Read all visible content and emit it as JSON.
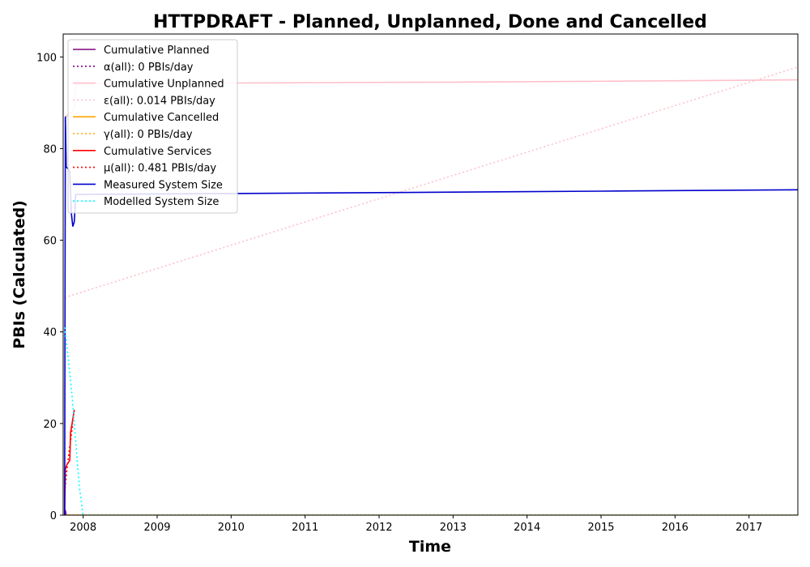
{
  "chart_data": {
    "type": "line",
    "title": "HTTPDRAFT - Planned, Unplanned, Done  and Cancelled",
    "xlabel": "Time",
    "ylabel": "PBIs (Calculated)",
    "xlim": [
      2007.73,
      2017.66
    ],
    "ylim": [
      0,
      105
    ],
    "x_ticks": [
      2008,
      2009,
      2010,
      2011,
      2012,
      2013,
      2014,
      2015,
      2016,
      2017
    ],
    "y_ticks": [
      0,
      20,
      40,
      60,
      80,
      100
    ],
    "grid": false,
    "legend_position": "top-left",
    "series": [
      {
        "name": "Cumulative Planned",
        "color": "#800080",
        "dash": "solid",
        "points": [
          [
            2007.75,
            0
          ],
          [
            2007.755,
            1
          ],
          [
            2007.76,
            1
          ],
          [
            2007.77,
            0
          ]
        ]
      },
      {
        "name": "α(all): 0 PBIs/day",
        "color": "#800080",
        "dash": "dotted",
        "points": [
          [
            2007.75,
            0
          ],
          [
            2017.66,
            0
          ]
        ]
      },
      {
        "name": "Cumulative Unplanned",
        "color": "#ffc0cb",
        "dash": "solid",
        "points": [
          [
            2007.75,
            86
          ],
          [
            2007.77,
            87
          ],
          [
            2007.8,
            87.5
          ],
          [
            2007.85,
            88
          ],
          [
            2007.88,
            89
          ],
          [
            2007.9,
            94
          ],
          [
            2008.0,
            94.2
          ],
          [
            2010.0,
            94.3
          ],
          [
            2013.0,
            94.5
          ],
          [
            2015.0,
            94.7
          ],
          [
            2017.66,
            95.0
          ]
        ]
      },
      {
        "name": "ε(all): 0.014 PBIs/day",
        "color": "#ffc0cb",
        "dash": "dotted",
        "points": [
          [
            2007.75,
            47.5
          ],
          [
            2017.66,
            97.8
          ]
        ]
      },
      {
        "name": "Cumulative Cancelled",
        "color": "#ffa500",
        "dash": "solid",
        "points": [
          [
            2007.75,
            0
          ],
          [
            2017.66,
            0
          ]
        ]
      },
      {
        "name": "γ(all): 0 PBIs/day",
        "color": "#ffa500",
        "dash": "dotted",
        "points": [
          [
            2007.75,
            0
          ],
          [
            2017.66,
            0
          ]
        ]
      },
      {
        "name": "Cumulative Services",
        "color": "#ff0000",
        "dash": "solid",
        "points": [
          [
            2007.75,
            0
          ],
          [
            2007.76,
            10
          ],
          [
            2007.78,
            11
          ],
          [
            2007.82,
            12
          ],
          [
            2007.83,
            18
          ],
          [
            2007.85,
            20
          ],
          [
            2007.87,
            22
          ],
          [
            2007.88,
            23
          ]
        ]
      },
      {
        "name": "μ(all): 0.481 PBIs/day",
        "color": "#ff0000",
        "dash": "dotted",
        "points": [
          [
            2007.75,
            5
          ],
          [
            2007.78,
            10
          ],
          [
            2007.82,
            15
          ],
          [
            2007.86,
            20
          ]
        ]
      },
      {
        "name": "Measured System Size",
        "color": "#0000cd",
        "dash": "solid",
        "points": [
          [
            2007.75,
            0
          ],
          [
            2007.76,
            87
          ],
          [
            2007.77,
            76
          ],
          [
            2007.8,
            75.5
          ],
          [
            2007.82,
            75
          ],
          [
            2007.84,
            66
          ],
          [
            2007.86,
            63
          ],
          [
            2007.88,
            64
          ],
          [
            2007.9,
            70
          ],
          [
            2010.0,
            70.2
          ],
          [
            2013.0,
            70.5
          ],
          [
            2015.0,
            70.7
          ],
          [
            2017.66,
            71.0
          ]
        ]
      },
      {
        "name": "Modelled System Size",
        "color": "#00ffff",
        "dash": "dotted",
        "points": [
          [
            2007.75,
            41
          ],
          [
            2007.8,
            34
          ],
          [
            2007.85,
            26
          ],
          [
            2007.9,
            16
          ],
          [
            2007.95,
            6
          ],
          [
            2008.0,
            0
          ],
          [
            2017.66,
            0
          ]
        ]
      }
    ]
  }
}
